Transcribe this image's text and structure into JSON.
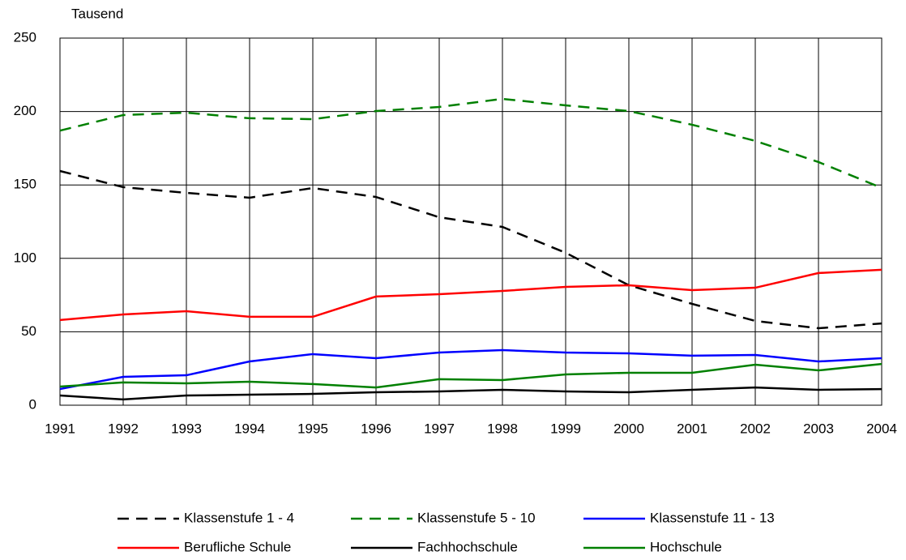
{
  "chart_data": {
    "type": "line",
    "y_label": "Tausend",
    "categories": [
      "1991",
      "1992",
      "1993",
      "1994",
      "1995",
      "1996",
      "1997",
      "1998",
      "1999",
      "2000",
      "2001",
      "2002",
      "2003",
      "2004"
    ],
    "ylim": [
      0,
      250
    ],
    "yticks": [
      0,
      50,
      100,
      150,
      200,
      250
    ],
    "grid": true,
    "series": [
      {
        "name": "Klassenstufe 1 - 4",
        "color": "#000000",
        "dashed": true,
        "values": [
          159.5,
          148.5,
          144.6,
          141.3,
          147.9,
          141.8,
          128,
          121.4,
          103.8,
          81.7,
          69,
          57.4,
          52.4,
          55.7
        ]
      },
      {
        "name": "Klassenstufe 5 - 10",
        "color": "#008000",
        "dashed": true,
        "values": [
          187,
          197.6,
          199.2,
          195.4,
          194.8,
          200.3,
          203.1,
          208.6,
          204.2,
          200.3,
          191,
          180,
          165.6,
          148
        ]
      },
      {
        "name": "Klassenstufe 11 - 13",
        "color": "#0000ff",
        "dashed": false,
        "values": [
          11,
          19.3,
          20.4,
          29.8,
          34.8,
          32,
          35.9,
          37.5,
          35.9,
          35.3,
          33.7,
          34.2,
          29.8,
          32
        ]
      },
      {
        "name": "Berufliche Schule",
        "color": "#ff0000",
        "dashed": false,
        "values": [
          58,
          61.8,
          64,
          60.2,
          60.2,
          74,
          75.6,
          77.8,
          80.6,
          81.7,
          78.4,
          80,
          90,
          92.2
        ]
      },
      {
        "name": "Fachhochschule",
        "color": "#000000",
        "dashed": false,
        "values": [
          6.6,
          3.9,
          6.6,
          7.2,
          7.7,
          8.8,
          9.4,
          10.5,
          9.4,
          8.8,
          10.5,
          12.1,
          10.5,
          11
        ]
      },
      {
        "name": "Hochschule",
        "color": "#008000",
        "dashed": false,
        "values": [
          12.7,
          15.5,
          14.9,
          16,
          14.4,
          12.1,
          17.7,
          17.1,
          21,
          22.1,
          22.1,
          27.6,
          23.7,
          28.1
        ]
      }
    ]
  }
}
